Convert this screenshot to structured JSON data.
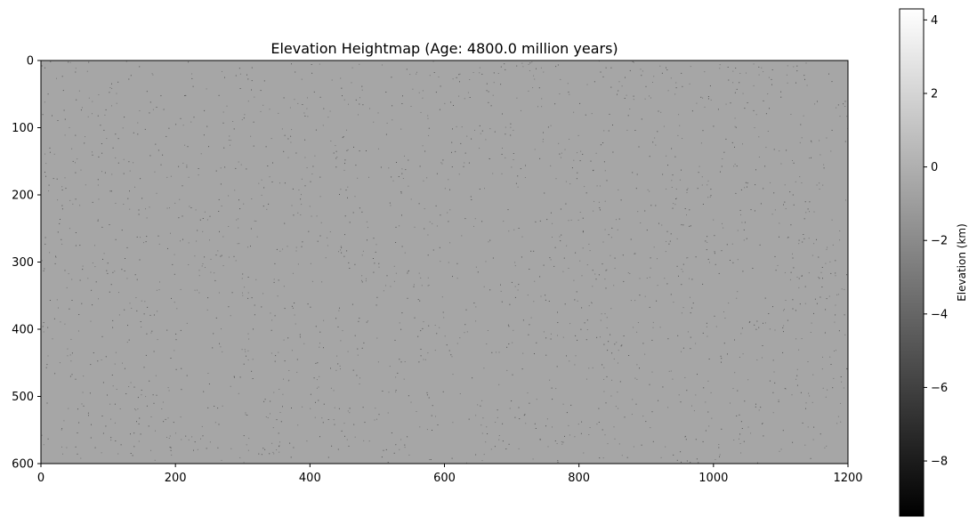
{
  "chart_data": {
    "type": "heatmap",
    "title": "Elevation Heightmap (Age: 4800.0 million years)",
    "xlabel": "",
    "ylabel": "",
    "xlim": [
      0,
      1200
    ],
    "ylim": [
      600,
      0
    ],
    "x_ticks": [
      "0",
      "200",
      "400",
      "600",
      "800",
      "1000",
      "1200"
    ],
    "y_ticks": [
      "0",
      "100",
      "200",
      "300",
      "400",
      "500",
      "600"
    ],
    "colormap": "gray",
    "background_value": -0.5,
    "colorbar": {
      "label": "Elevation (km)",
      "range": [
        -9.5,
        4.3
      ],
      "ticks": [
        "−8",
        "−6",
        "−4",
        "−2",
        "0",
        "2",
        "4"
      ]
    },
    "grid": false,
    "legend": "none"
  }
}
